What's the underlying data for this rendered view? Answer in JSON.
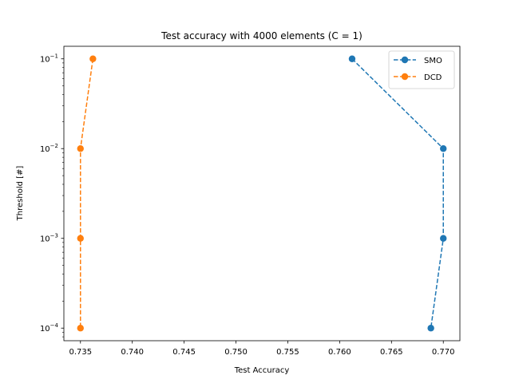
{
  "chart_data": {
    "type": "line",
    "title": "Test accuracy with 4000 elements (C = 1)",
    "xlabel": "Test Accuracy",
    "ylabel": "Threshold [#]",
    "yscale": "log",
    "xlim": [
      0.7334,
      0.7716
    ],
    "ylim": [
      7.24e-05,
      0.138
    ],
    "x_ticks": [
      0.735,
      0.74,
      0.745,
      0.75,
      0.755,
      0.76,
      0.765,
      0.77
    ],
    "x_tick_labels": [
      "0.735",
      "0.740",
      "0.745",
      "0.750",
      "0.755",
      "0.760",
      "0.765",
      "0.770"
    ],
    "y_ticks": [
      0.0001,
      0.001,
      0.01,
      0.1
    ],
    "y_tick_labels": [
      {
        "base": "10",
        "exp": "−4"
      },
      {
        "base": "10",
        "exp": "−3"
      },
      {
        "base": "10",
        "exp": "−2"
      },
      {
        "base": "10",
        "exp": "−1"
      }
    ],
    "grid": false,
    "legend_position": "upper right",
    "series": [
      {
        "name": "SMO",
        "color": "#1f77b4",
        "linestyle": "dashed",
        "marker": "circle",
        "points": [
          {
            "x": 0.7612,
            "y": 0.1
          },
          {
            "x": 0.77,
            "y": 0.01
          },
          {
            "x": 0.77,
            "y": 0.001
          },
          {
            "x": 0.7688,
            "y": 0.0001
          }
        ]
      },
      {
        "name": "DCD",
        "color": "#ff7f0e",
        "linestyle": "dashed",
        "marker": "circle",
        "points": [
          {
            "x": 0.7362,
            "y": 0.1
          },
          {
            "x": 0.735,
            "y": 0.01
          },
          {
            "x": 0.735,
            "y": 0.001
          },
          {
            "x": 0.735,
            "y": 0.0001
          }
        ]
      }
    ]
  }
}
